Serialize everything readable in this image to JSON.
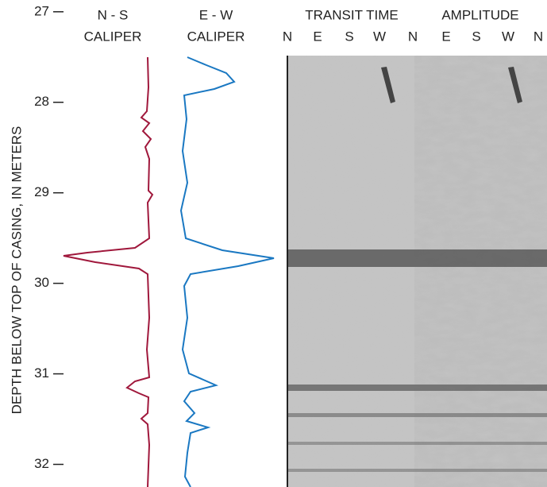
{
  "chart_data": {
    "type": "well-log",
    "ylabel": "DEPTH BELOW TOP OF CASING, IN METERS",
    "ylim": [
      26.87,
      32.25
    ],
    "yticks": [
      27,
      28,
      29,
      30,
      31,
      32
    ],
    "curve_tracks": [
      {
        "name": "N - S",
        "label": "CALIPER",
        "color": "#a0183c"
      },
      {
        "name": "E - W",
        "label": "CALIPER",
        "color": "#1a78c2"
      }
    ],
    "image_tracks": [
      "TRANSIT TIME",
      "AMPLITUDE"
    ],
    "directions": [
      "N",
      "E",
      "S",
      "W",
      "N",
      "E",
      "S",
      "W",
      "N"
    ]
  }
}
